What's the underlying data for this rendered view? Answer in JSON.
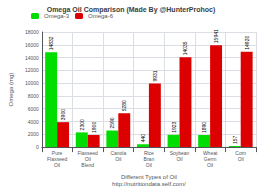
{
  "chart_data": {
    "type": "bar",
    "title": "Omega Oil Comparison (Made By @HunterProhoc)",
    "xlabel": "Different Types of Oil\nhttp://nutritiondata.self.com/",
    "ylabel": "Omega (mg)",
    "categories": [
      "Pure Flaxseed Oil",
      "Flaxseed Oil Blend",
      "Canola Oil",
      "Rice Bran Oil",
      "Soybean Oil",
      "Wheat Germ Oil",
      "Corn Oil"
    ],
    "series": [
      {
        "name": "Omega-3",
        "color": "#00dd00",
        "values": [
          14832,
          2300,
          2590,
          440,
          1923,
          1890,
          157
        ]
      },
      {
        "name": "Omega-6",
        "color": "#dd0000",
        "values": [
          3900,
          1900,
          5280,
          9931,
          14035,
          15941,
          14920
        ]
      }
    ],
    "ylim": [
      0,
      18000
    ],
    "yticks": [
      0,
      2000,
      4000,
      6000,
      8000,
      10000,
      12000,
      14000,
      16000,
      18000
    ],
    "grid": true,
    "legend": "upper left",
    "data_labels": true
  }
}
